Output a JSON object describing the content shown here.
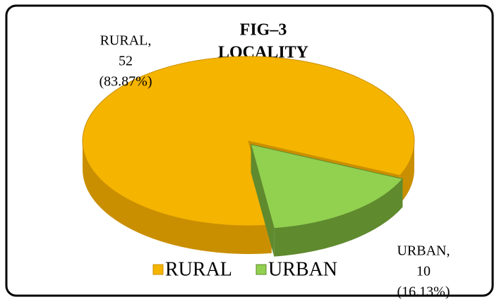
{
  "chart_data": {
    "type": "pie3d",
    "title_lines": [
      "FIG–3",
      "LOCALITY"
    ],
    "categories": [
      "RURAL",
      "URBAN"
    ],
    "values": [
      52,
      10
    ],
    "colors": [
      "#f5b400",
      "#92d050"
    ],
    "side_colors": [
      "#c98f00",
      "#5f8a2e"
    ],
    "data_labels": [
      {
        "name": "RURAL,",
        "percent": "(83.87%)"
      },
      {
        "name": "URBAN,",
        "percent": "(16.13%)"
      }
    ],
    "legend": "bottom"
  }
}
